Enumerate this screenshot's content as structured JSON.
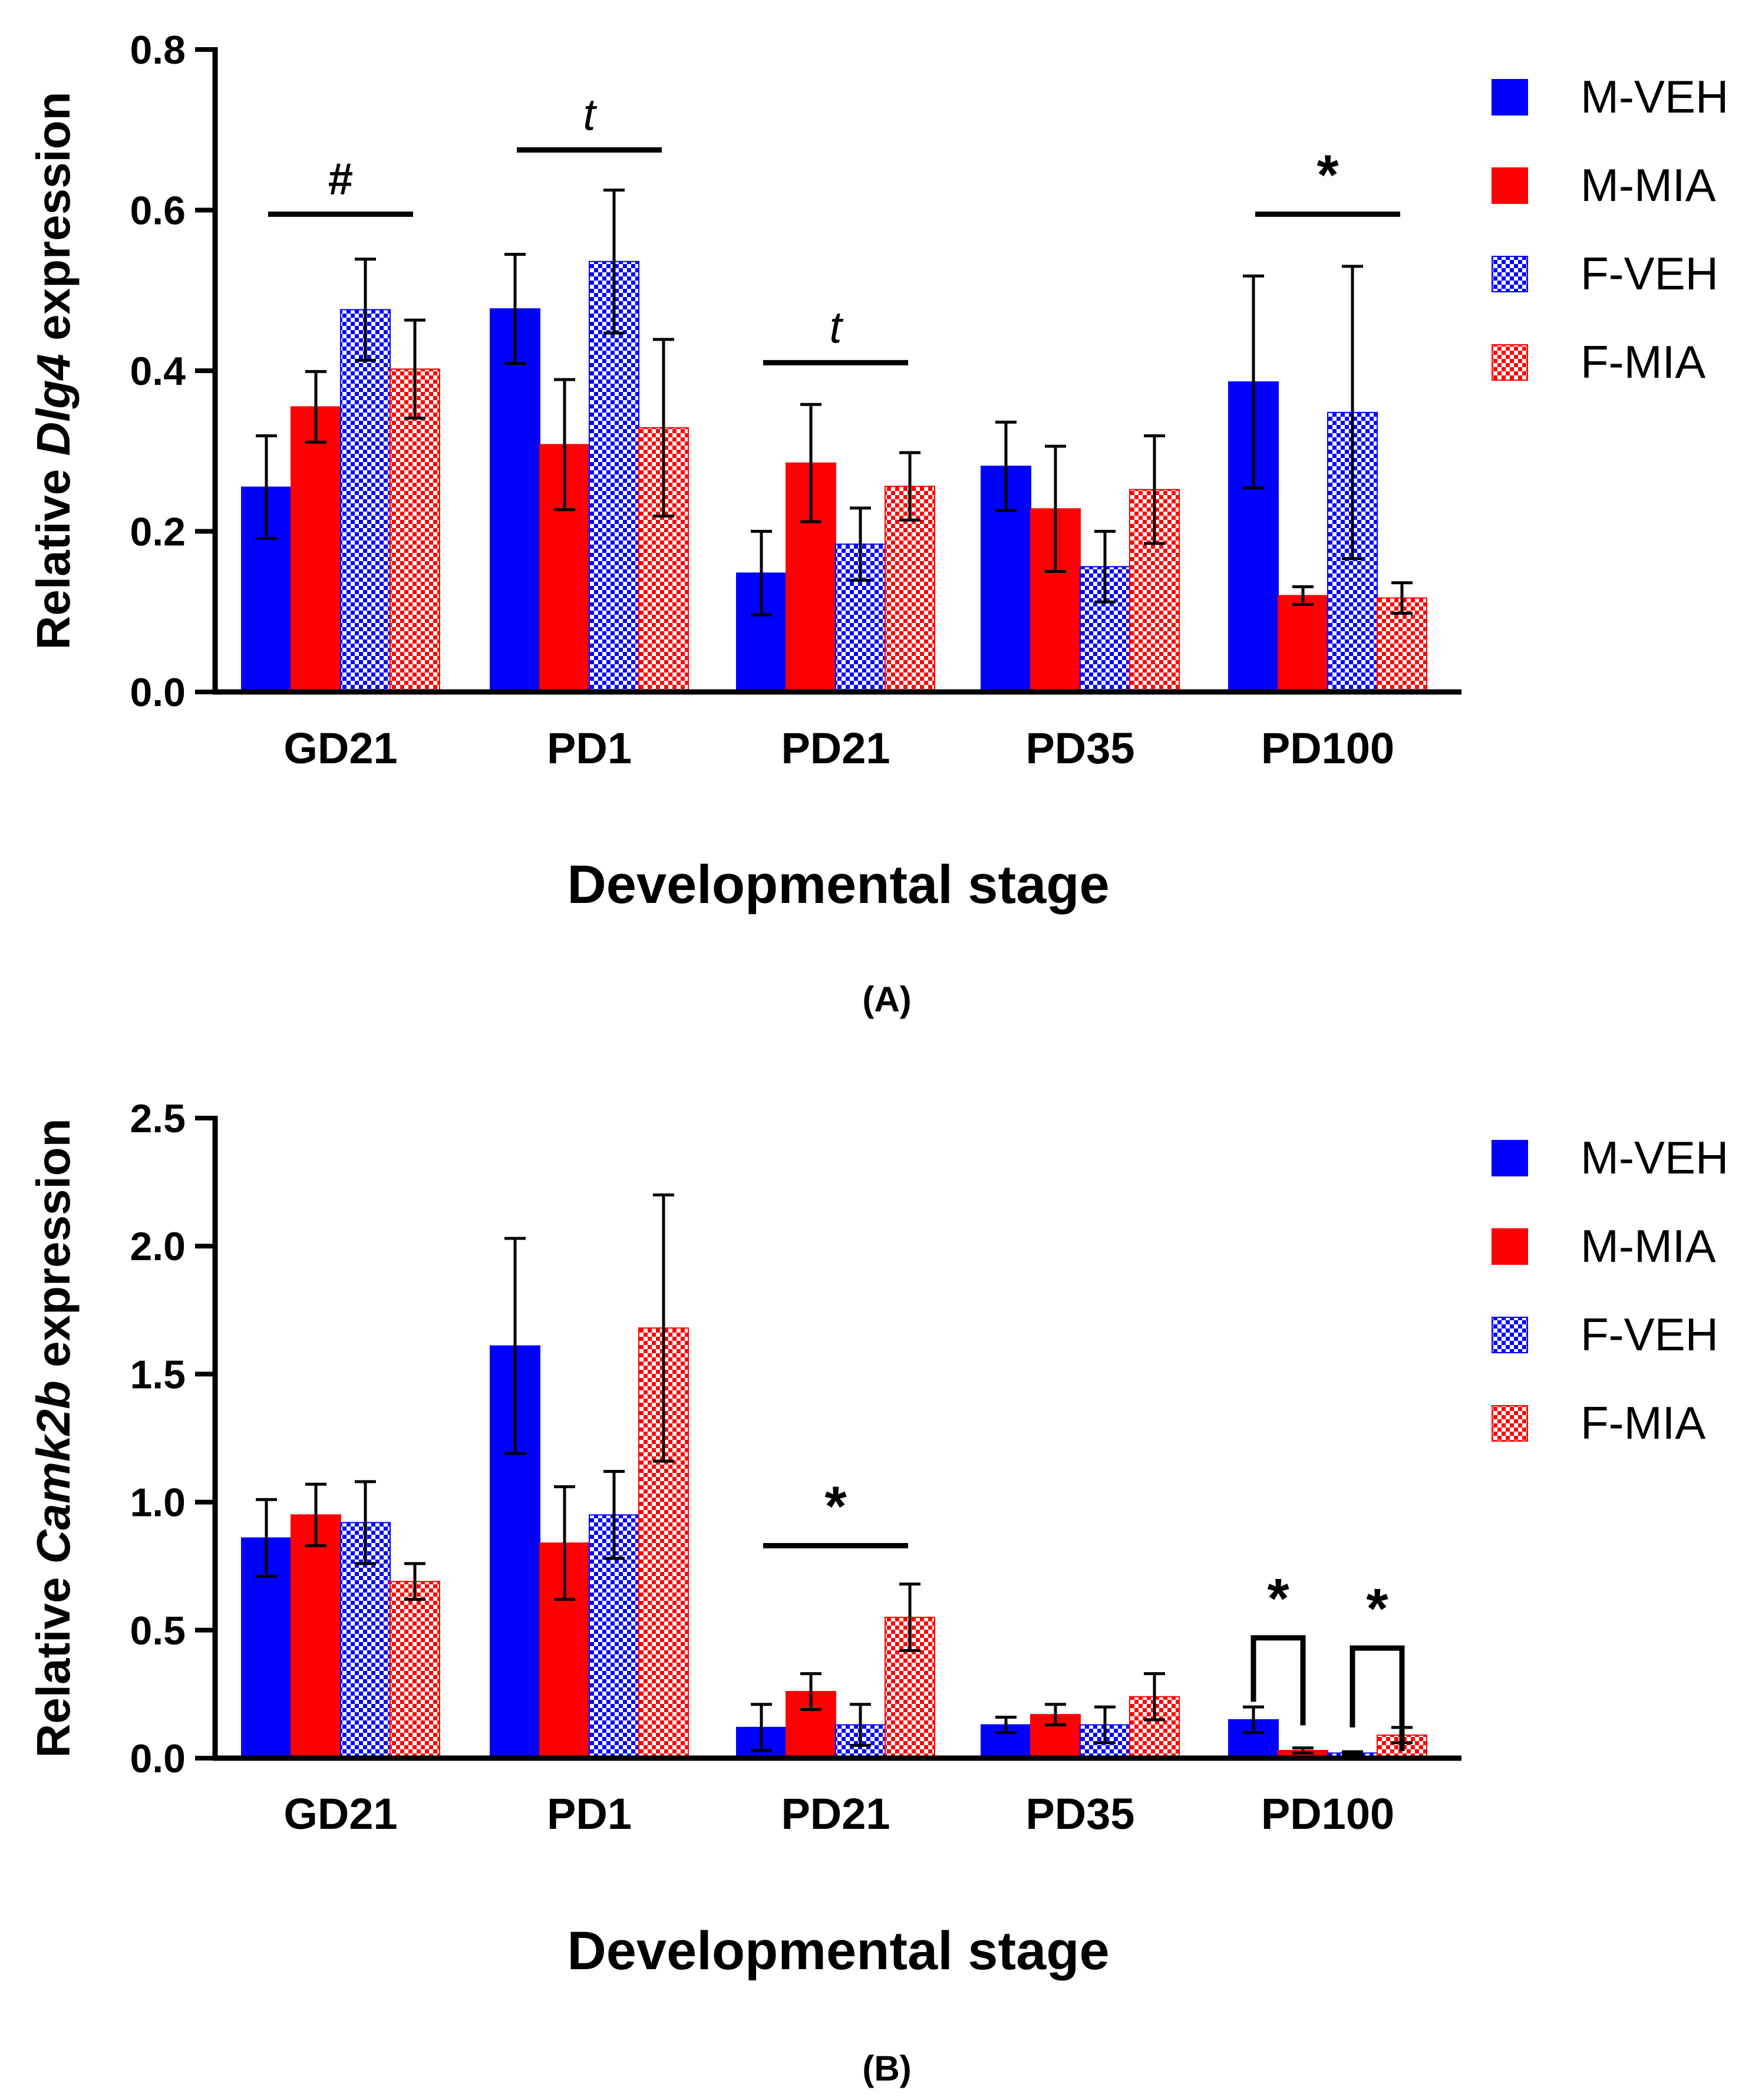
{
  "legend_labels": [
    "M-VEH",
    "M-MIA",
    "F-VEH",
    "F-MIA"
  ],
  "colors": {
    "blue": "#0000ff",
    "red": "#ff0000",
    "axis": "#000000"
  },
  "chart_data": [
    {
      "panel": "A",
      "caption": "(A)",
      "type": "bar",
      "categories": [
        "GD21",
        "PD1",
        "PD21",
        "PD35",
        "PD100"
      ],
      "xlabel": "Developmental stage",
      "ylabel_prefix": "Relative ",
      "ylabel_gene": "Dlg4",
      "ylabel_suffix": " expression",
      "ylim": [
        0,
        0.8
      ],
      "ytick_values": [
        0,
        0.2,
        0.4,
        0.6,
        0.8
      ],
      "ytick_labels": [
        "0.0",
        "0.2",
        "0.4",
        "0.6",
        "0.8"
      ],
      "series": [
        {
          "name": "M-VEH",
          "values": [
            0.255,
            0.477,
            0.148,
            0.281,
            0.386
          ],
          "errors": [
            0.064,
            0.068,
            0.052,
            0.055,
            0.132
          ]
        },
        {
          "name": "M-MIA",
          "values": [
            0.355,
            0.308,
            0.285,
            0.228,
            0.12
          ],
          "errors": [
            0.044,
            0.081,
            0.073,
            0.078,
            0.011
          ]
        },
        {
          "name": "F-VEH",
          "values": [
            0.476,
            0.536,
            0.184,
            0.156,
            0.348
          ],
          "errors": [
            0.063,
            0.089,
            0.045,
            0.044,
            0.182
          ]
        },
        {
          "name": "F-MIA",
          "values": [
            0.402,
            0.329,
            0.256,
            0.252,
            0.117
          ],
          "errors": [
            0.061,
            0.11,
            0.042,
            0.067,
            0.019
          ]
        }
      ],
      "annotations": [
        {
          "label": "#",
          "category": "GD21",
          "y": 0.595,
          "span": [
            0,
            3
          ],
          "style": "line",
          "italic": false
        },
        {
          "label": "t",
          "category": "PD1",
          "y": 0.675,
          "span": [
            0,
            3
          ],
          "style": "line",
          "italic": true
        },
        {
          "label": "t",
          "category": "PD21",
          "y": 0.41,
          "span": [
            0,
            3
          ],
          "style": "line",
          "italic": true
        },
        {
          "label": "*",
          "category": "PD100",
          "y": 0.595,
          "span": [
            0,
            3
          ],
          "style": "line",
          "italic": false
        }
      ]
    },
    {
      "panel": "B",
      "caption": "(B)",
      "type": "bar",
      "categories": [
        "GD21",
        "PD1",
        "PD21",
        "PD35",
        "PD100"
      ],
      "xlabel": "Developmental stage",
      "ylabel_prefix": "Relative ",
      "ylabel_gene": "Camk2b",
      "ylabel_suffix": " expression",
      "ylim": [
        0,
        2.5
      ],
      "ytick_values": [
        0,
        0.5,
        1.0,
        1.5,
        2.0,
        2.5
      ],
      "ytick_labels": [
        "0.0",
        "0.5",
        "1.0",
        "1.5",
        "2.0",
        "2.5"
      ],
      "series": [
        {
          "name": "M-VEH",
          "values": [
            0.86,
            1.61,
            0.12,
            0.13,
            0.15
          ],
          "errors": [
            0.15,
            0.42,
            0.09,
            0.03,
            0.05
          ]
        },
        {
          "name": "M-MIA",
          "values": [
            0.95,
            0.84,
            0.26,
            0.17,
            0.03
          ],
          "errors": [
            0.12,
            0.22,
            0.07,
            0.04,
            0.01
          ]
        },
        {
          "name": "F-VEH",
          "values": [
            0.92,
            0.95,
            0.13,
            0.13,
            0.02
          ],
          "errors": [
            0.16,
            0.17,
            0.08,
            0.07,
            0.005
          ]
        },
        {
          "name": "F-MIA",
          "values": [
            0.69,
            1.68,
            0.55,
            0.24,
            0.09
          ],
          "errors": [
            0.07,
            0.52,
            0.13,
            0.09,
            0.03
          ]
        }
      ],
      "annotations": [
        {
          "label": "*",
          "category": "PD21",
          "y": 0.83,
          "span": [
            0,
            3
          ],
          "style": "line",
          "italic": false
        },
        {
          "label": "*",
          "category": "PD100",
          "y": 0.47,
          "span": [
            0,
            1
          ],
          "style": "bracket",
          "bottom": 0.22,
          "italic": false
        },
        {
          "label": "*",
          "category": "PD100",
          "y": 0.43,
          "span": [
            2,
            3
          ],
          "style": "bracket",
          "bottom": 0.12,
          "italic": false
        }
      ]
    }
  ]
}
